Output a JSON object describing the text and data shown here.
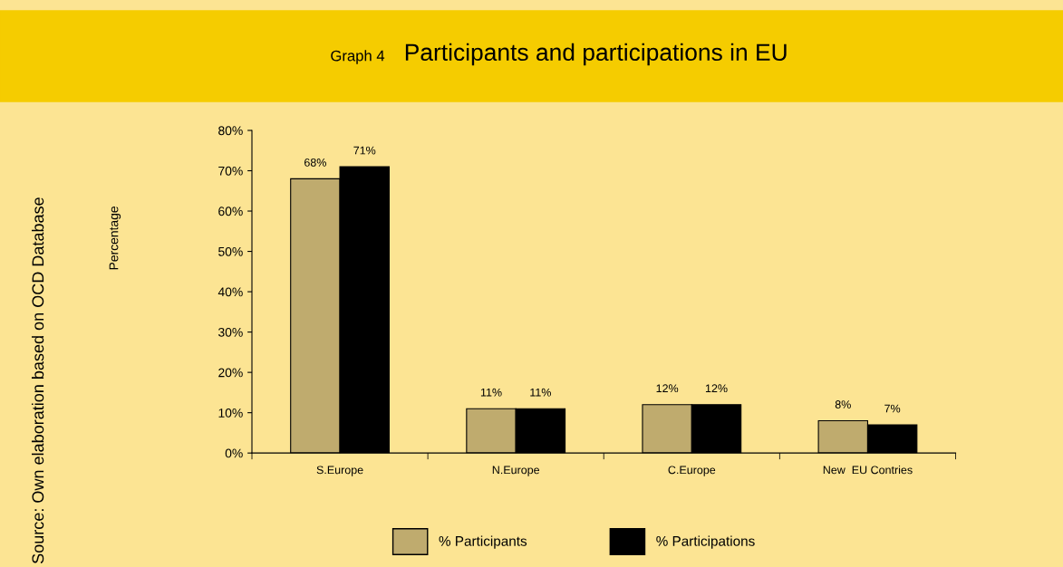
{
  "chart_data": {
    "type": "bar",
    "title": "Participants and participations in EU",
    "subtitle": "Graph 4",
    "annotations": [
      "Source: Own elaboration based on OCD Database",
      "Percentage"
    ],
    "categories": [
      "S.Europe",
      "N.Europe",
      "C.Europe",
      "New  EU Contries"
    ],
    "series": [
      {
        "name": "% Participants",
        "color": "#bfab6e",
        "values": [
          68,
          11,
          12,
          8
        ],
        "value_labels": [
          "68%",
          "11%",
          "12%",
          "8%"
        ]
      },
      {
        "name": "% Participations",
        "color": "#000000",
        "values": [
          71,
          11,
          12,
          7
        ],
        "value_labels": [
          "71%",
          "11%",
          "12%",
          "7%"
        ]
      }
    ],
    "ylim": [
      0,
      80
    ],
    "yticks": [
      {
        "value": 0,
        "label": "0%"
      },
      {
        "value": 10,
        "label": "10%"
      },
      {
        "value": 20,
        "label": "20%"
      },
      {
        "value": 30,
        "label": "30%"
      },
      {
        "value": 40,
        "label": "40%"
      },
      {
        "value": 50,
        "label": "50%"
      },
      {
        "value": 60,
        "label": "60%"
      },
      {
        "value": 70,
        "label": "70%"
      },
      {
        "value": 80,
        "label": "80%"
      }
    ],
    "grid": false,
    "legend": "bottom"
  }
}
